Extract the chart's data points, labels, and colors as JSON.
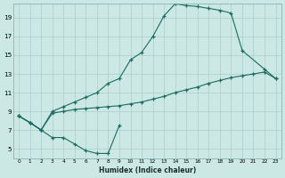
{
  "xlabel": "Humidex (Indice chaleur)",
  "bg_color": "#cce8e4",
  "grid_color": "#aacece",
  "line_color": "#1a6b60",
  "xlim": [
    -0.5,
    23.5
  ],
  "ylim": [
    4,
    20.5
  ],
  "xticks": [
    0,
    1,
    2,
    3,
    4,
    5,
    6,
    7,
    8,
    9,
    10,
    11,
    12,
    13,
    14,
    15,
    16,
    17,
    18,
    19,
    20,
    21,
    22,
    23
  ],
  "yticks": [
    5,
    7,
    9,
    11,
    13,
    15,
    17,
    19
  ],
  "line_bottom_x": [
    0,
    1,
    2,
    3,
    4,
    5,
    6,
    7,
    8,
    9
  ],
  "line_bottom_y": [
    8.5,
    7.8,
    7.0,
    6.2,
    6.2,
    5.5,
    4.8,
    4.5,
    4.5,
    7.5
  ],
  "line_mid_x": [
    0,
    1,
    2,
    3,
    4,
    5,
    6,
    7,
    8,
    9,
    10,
    11,
    12,
    13,
    14,
    15,
    16,
    17,
    18,
    19,
    20,
    21,
    22,
    23
  ],
  "line_mid_y": [
    8.5,
    7.8,
    7.0,
    8.8,
    9.0,
    9.2,
    9.3,
    9.4,
    9.5,
    9.6,
    9.8,
    10.0,
    10.3,
    10.6,
    11.0,
    11.3,
    11.6,
    12.0,
    12.3,
    12.6,
    12.8,
    13.0,
    13.2,
    12.5
  ],
  "line_top_x": [
    0,
    1,
    2,
    3,
    4,
    5,
    6,
    7,
    8,
    9,
    10,
    11,
    12,
    13,
    14,
    15,
    16,
    17,
    18,
    19,
    20,
    22,
    23
  ],
  "line_top_y": [
    8.5,
    7.8,
    7.0,
    9.0,
    9.5,
    10.0,
    10.5,
    11.0,
    12.0,
    12.5,
    14.5,
    15.3,
    17.0,
    19.2,
    20.5,
    20.3,
    20.2,
    20.0,
    19.8,
    19.5,
    15.5,
    13.5,
    12.5
  ]
}
